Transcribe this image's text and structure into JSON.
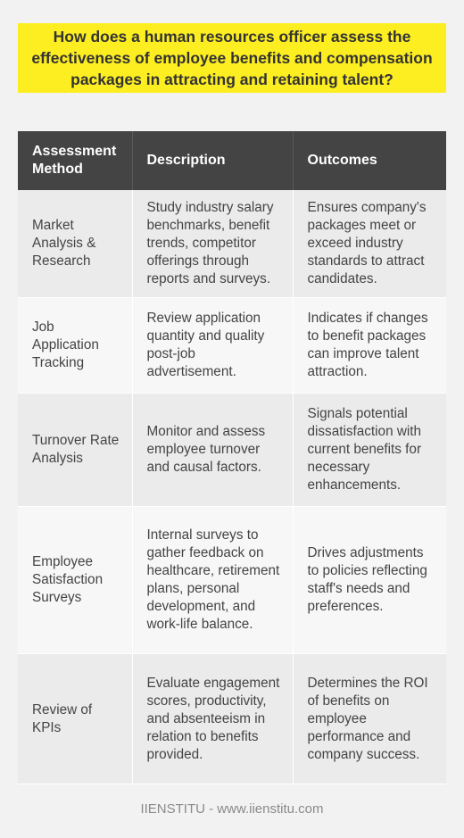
{
  "title": "How does a human resources officer assess the effectiveness of employee benefits and compensation packages in attracting and retaining talent?",
  "table": {
    "headers": [
      "Assessment Method",
      "Description",
      "Outcomes"
    ],
    "rows": [
      {
        "method": "Market Analysis & Research",
        "description": "Study industry salary benchmarks, benefit trends, competitor offerings through reports and surveys.",
        "outcome": "Ensures company's packages meet or exceed industry standards to attract candidates."
      },
      {
        "method": "Job Application Tracking",
        "description": "Review application quantity and quality post-job advertisement.",
        "outcome": "Indicates if changes to benefit packages can improve talent attraction."
      },
      {
        "method": "Turnover Rate Analysis",
        "description": "Monitor and assess employee turnover and causal factors.",
        "outcome": "Signals potential dissatisfaction with current benefits for necessary enhancements."
      },
      {
        "method": "Employee Satisfaction Surveys",
        "description": "Internal surveys to gather feedback on healthcare, retirement plans, personal development, and work-life balance.",
        "outcome": "Drives adjustments to policies reflecting staff's needs and preferences."
      },
      {
        "method": "Review of KPIs",
        "description": "Evaluate engagement scores, productivity, and absenteeism in relation to benefits provided.",
        "outcome": "Determines the ROI of benefits on employee performance and company success."
      }
    ]
  },
  "footer": "IIENSTITU - www.iienstitu.com",
  "colors": {
    "title_bg": "#fdee21",
    "header_bg": "#444444",
    "row_odd": "#ebebeb",
    "row_even": "#f7f7f7",
    "page_bg": "#f2f2f2"
  }
}
